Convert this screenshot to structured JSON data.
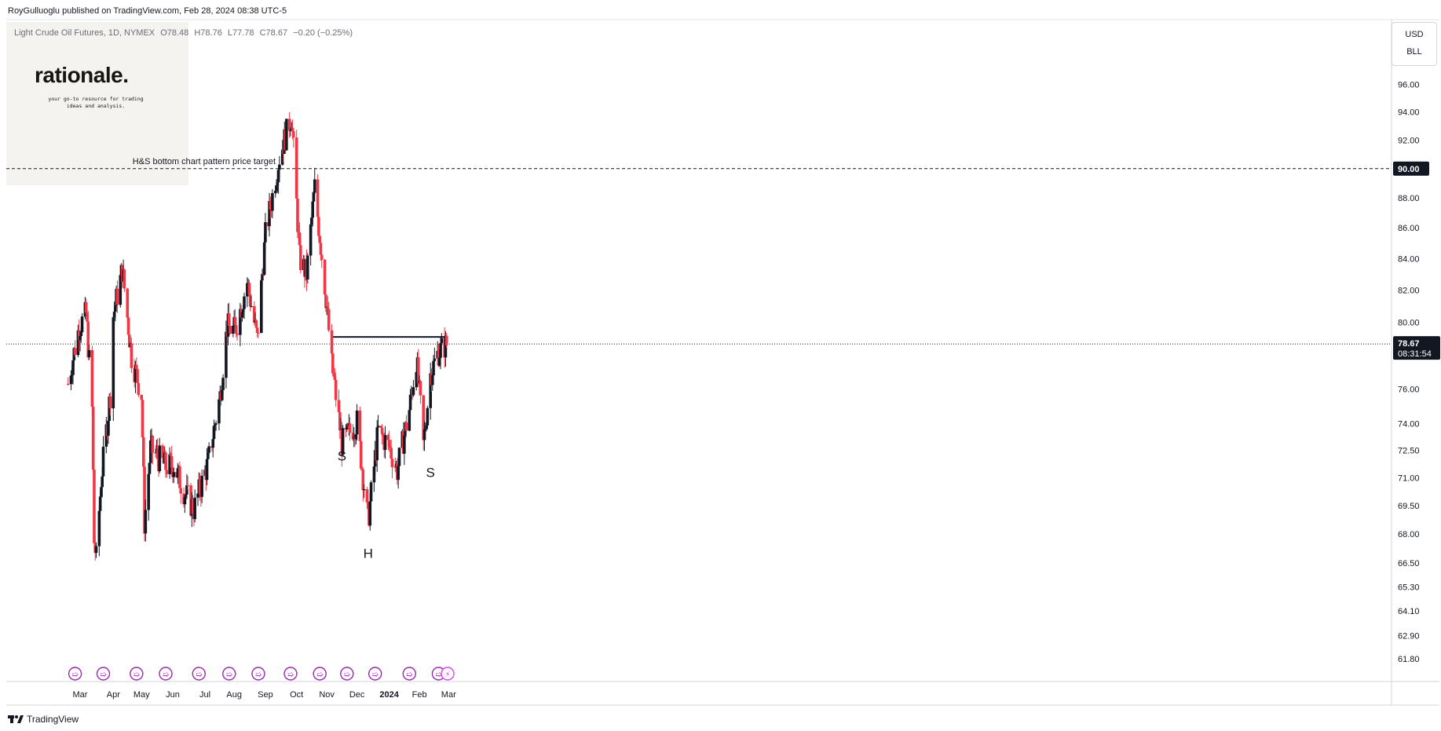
{
  "header": {
    "published": "RoyGulluoglu published on TradingView.com, Feb 28, 2024 08:38 UTC-5"
  },
  "legend": {
    "symbol": "Light Crude Oil Futures, 1D, NYMEX",
    "open": "O78.48",
    "high": "H78.76",
    "low": "L77.78",
    "close": "C78.67",
    "change": "−0.20 (−0.25%)"
  },
  "watermark": {
    "brand": "rationale.",
    "tagline": "your go-to resource for trading ideas and analysis."
  },
  "unit_box": {
    "currency": "USD",
    "unit": "BLL"
  },
  "footer": {
    "brand": "TradingView"
  },
  "colors": {
    "up": "#131722",
    "down": "#f23645",
    "accent_label": "#131722"
  },
  "chart_data": {
    "type": "candlestick",
    "y_scale": "log",
    "ylim": [
      61.2,
      97.2
    ],
    "y_ticks": [
      "96.00",
      "94.00",
      "92.00",
      "90.00",
      "88.00",
      "86.00",
      "84.00",
      "82.00",
      "80.00",
      "78.00",
      "76.00",
      "74.00",
      "72.50",
      "71.00",
      "69.50",
      "68.00",
      "66.50",
      "65.30",
      "64.10",
      "62.90",
      "61.80"
    ],
    "x_ticks": [
      {
        "label": "Mar",
        "date": "2023-03-01"
      },
      {
        "label": "Apr",
        "date": "2023-04-03"
      },
      {
        "label": "May",
        "date": "2023-05-01"
      },
      {
        "label": "Jun",
        "date": "2023-06-01"
      },
      {
        "label": "Jul",
        "date": "2023-07-03"
      },
      {
        "label": "Aug",
        "date": "2023-08-01"
      },
      {
        "label": "Sep",
        "date": "2023-09-01"
      },
      {
        "label": "Oct",
        "date": "2023-10-02"
      },
      {
        "label": "Nov",
        "date": "2023-11-01"
      },
      {
        "label": "Dec",
        "date": "2023-12-01"
      },
      {
        "label": "2024",
        "date": "2024-01-02",
        "bold": true
      },
      {
        "label": "Feb",
        "date": "2024-02-01"
      },
      {
        "label": "Mar",
        "date": "2024-03-01"
      }
    ],
    "price_target_line": {
      "value": 90.0,
      "label": "H&S bottom chart pattern price target",
      "tag": "90.00"
    },
    "neckline": {
      "value": 79.1,
      "from": "2023-11-07",
      "to": "2024-02-29"
    },
    "last_price": {
      "value": 78.67,
      "tag": "78.67",
      "countdown": "08:31:54"
    },
    "pattern_labels": [
      {
        "text": "S",
        "date": "2023-11-16",
        "price": 72.2
      },
      {
        "text": "H",
        "date": "2023-12-12",
        "price": 67.0
      },
      {
        "text": "S",
        "date": "2024-02-12",
        "price": 71.3
      }
    ],
    "event_dates": [
      "2023-02-24",
      "2023-03-24",
      "2023-04-26",
      "2023-05-25",
      "2023-06-27",
      "2023-07-27",
      "2023-08-25",
      "2023-09-26",
      "2023-10-25",
      "2023-11-21",
      "2023-12-19",
      "2024-01-22",
      "2024-02-20",
      "2024-02-29"
    ],
    "x": [
      "2023-02-17",
      "2023-02-28",
      "2023-03-07",
      "2023-03-13",
      "2023-03-15",
      "2023-03-17",
      "2023-03-22",
      "2023-03-31",
      "2023-04-03",
      "2023-04-12",
      "2023-04-21",
      "2023-05-01",
      "2023-05-04",
      "2023-05-10",
      "2023-05-25",
      "2023-06-02",
      "2023-06-12",
      "2023-06-22",
      "2023-07-06",
      "2023-07-18",
      "2023-07-25",
      "2023-08-02",
      "2023-08-14",
      "2023-08-24",
      "2023-09-01",
      "2023-09-15",
      "2023-09-27",
      "2023-10-05",
      "2023-10-12",
      "2023-10-20",
      "2023-10-30",
      "2023-11-06",
      "2023-11-16",
      "2023-12-01",
      "2023-12-12",
      "2023-12-22",
      "2024-01-02",
      "2024-01-10",
      "2024-01-22",
      "2024-01-29",
      "2024-02-05",
      "2024-02-12",
      "2024-02-20",
      "2024-02-28"
    ],
    "y": [
      76.3,
      79.7,
      80.5,
      74.8,
      67.6,
      66.7,
      70.9,
      75.7,
      80.4,
      83.3,
      77.9,
      75.7,
      68.6,
      72.6,
      71.6,
      71.7,
      70.3,
      69.3,
      71.8,
      75.6,
      79.7,
      79.5,
      82.5,
      78.9,
      85.5,
      90.8,
      93.7,
      84.0,
      83.0,
      88.7,
      82.3,
      77.4,
      72.9,
      74.1,
      68.6,
      73.6,
      72.7,
      71.4,
      74.8,
      77.8,
      72.8,
      76.9,
      78.2,
      78.67
    ]
  }
}
